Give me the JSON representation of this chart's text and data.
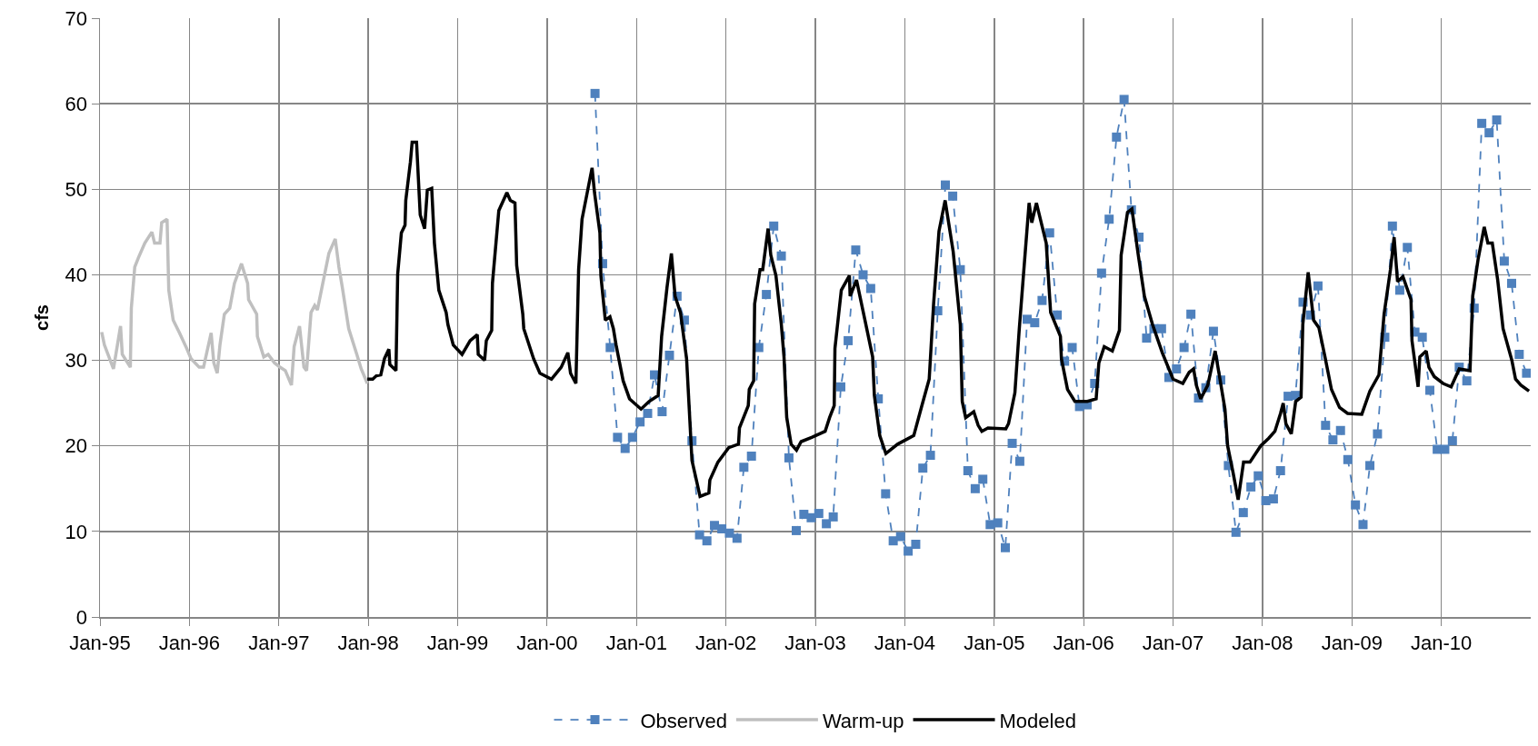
{
  "chart_data": {
    "type": "line",
    "ylabel": "cfs",
    "xlim": [
      "1995-01-01",
      "2011-01-01"
    ],
    "ylim": [
      0,
      70
    ],
    "xticks": [
      {
        "value": "1995-01-01",
        "label": "Jan-95"
      },
      {
        "value": "1996-01-01",
        "label": "Jan-96"
      },
      {
        "value": "1997-01-01",
        "label": "Jan-97"
      },
      {
        "value": "1998-01-01",
        "label": "Jan-98"
      },
      {
        "value": "1999-01-01",
        "label": "Jan-99"
      },
      {
        "value": "2000-01-01",
        "label": "Jan-00"
      },
      {
        "value": "2001-01-01",
        "label": "Jan-01"
      },
      {
        "value": "2002-01-01",
        "label": "Jan-02"
      },
      {
        "value": "2003-01-01",
        "label": "Jan-03"
      },
      {
        "value": "2004-01-01",
        "label": "Jan-04"
      },
      {
        "value": "2005-01-01",
        "label": "Jan-05"
      },
      {
        "value": "2006-01-01",
        "label": "Jan-06"
      },
      {
        "value": "2007-01-01",
        "label": "Jan-07"
      },
      {
        "value": "2008-01-01",
        "label": "Jan-08"
      },
      {
        "value": "2009-01-01",
        "label": "Jan-09"
      },
      {
        "value": "2010-01-01",
        "label": "Jan-10"
      }
    ],
    "yticks": [
      0,
      10,
      20,
      30,
      40,
      50,
      60,
      70
    ],
    "grid": true,
    "legend": "bottom",
    "series": [
      {
        "name": "Observed",
        "color": "#4f81bd",
        "marker": "square",
        "line_style": "dashed",
        "x": [
          "2000-07-15",
          "2000-08-15",
          "2000-09-15",
          "2000-10-15",
          "2000-11-15",
          "2000-12-15",
          "2001-01-15",
          "2001-02-15",
          "2001-03-15",
          "2001-04-15",
          "2001-05-15",
          "2001-06-15",
          "2001-07-15",
          "2001-08-15",
          "2001-09-15",
          "2001-10-15",
          "2001-11-15",
          "2001-12-15",
          "2002-01-15",
          "2002-02-15",
          "2002-03-15",
          "2002-04-15",
          "2002-05-15",
          "2002-06-15",
          "2002-07-15",
          "2002-08-15",
          "2002-09-15",
          "2002-10-15",
          "2002-11-15",
          "2002-12-15",
          "2003-01-15",
          "2003-02-15",
          "2003-03-15",
          "2003-04-15",
          "2003-05-15",
          "2003-06-15",
          "2003-07-15",
          "2003-08-15",
          "2003-09-15",
          "2003-10-15",
          "2003-11-15",
          "2003-12-15",
          "2004-01-15",
          "2004-02-15",
          "2004-03-15",
          "2004-04-15",
          "2004-05-15",
          "2004-06-15",
          "2004-07-15",
          "2004-08-15",
          "2004-09-15",
          "2004-10-15",
          "2004-11-15",
          "2004-12-15",
          "2005-01-15",
          "2005-02-15",
          "2005-03-15",
          "2005-04-15",
          "2005-05-15",
          "2005-06-15",
          "2005-07-15",
          "2005-08-15",
          "2005-09-15",
          "2005-10-15",
          "2005-11-15",
          "2005-12-15",
          "2006-01-15",
          "2006-02-15",
          "2006-03-15",
          "2006-04-15",
          "2006-05-15",
          "2006-06-15",
          "2006-07-15",
          "2006-08-15",
          "2006-09-15",
          "2006-10-15",
          "2006-11-15",
          "2006-12-15",
          "2007-01-15",
          "2007-02-15",
          "2007-03-15",
          "2007-04-15",
          "2007-05-15",
          "2007-06-15",
          "2007-07-15",
          "2007-08-15",
          "2007-09-15",
          "2007-10-15",
          "2007-11-15",
          "2007-12-15",
          "2008-01-15",
          "2008-02-15",
          "2008-03-15",
          "2008-04-15",
          "2008-05-15",
          "2008-06-15",
          "2008-07-15",
          "2008-08-15",
          "2008-09-15",
          "2008-10-15",
          "2008-11-15",
          "2008-12-15",
          "2009-01-15",
          "2009-02-15",
          "2009-03-15",
          "2009-04-15",
          "2009-05-15",
          "2009-06-15",
          "2009-07-15",
          "2009-08-15",
          "2009-09-15",
          "2009-10-15",
          "2009-11-15",
          "2009-12-15",
          "2010-01-15",
          "2010-02-15",
          "2010-03-15",
          "2010-04-15",
          "2010-05-15",
          "2010-06-15",
          "2010-07-15",
          "2010-08-15",
          "2010-09-15",
          "2010-10-15",
          "2010-11-15",
          "2010-12-15"
        ],
        "values": [
          61.2,
          41.3,
          31.5,
          21,
          19.7,
          21,
          22.8,
          23.8,
          28.3,
          24,
          30.6,
          37.5,
          34.7,
          20.6,
          9.6,
          8.9,
          10.7,
          10.3,
          9.8,
          9.2,
          17.5,
          18.8,
          31.5,
          37.7,
          45.7,
          42.2,
          18.6,
          10.1,
          12,
          11.6,
          12.1,
          10.9,
          11.7,
          26.9,
          32.3,
          42.9,
          40,
          38.4,
          25.5,
          14.4,
          8.9,
          9.4,
          7.7,
          8.5,
          17.4,
          18.9,
          35.8,
          50.5,
          49.2,
          40.6,
          17.1,
          15,
          16.1,
          10.8,
          11,
          8.1,
          20.3,
          18.2,
          34.8,
          34.4,
          37,
          44.9,
          35.3,
          29.9,
          31.5,
          24.6,
          24.8,
          27.3,
          40.2,
          46.5,
          56.1,
          60.5,
          47.6,
          44.4,
          32.6,
          33.7,
          33.7,
          28,
          29,
          31.5,
          35.4,
          25.6,
          26.8,
          33.4,
          27.7,
          17.7,
          9.9,
          12.2,
          15.2,
          16.5,
          13.6,
          13.8,
          17.1,
          25.8,
          25.9,
          36.8,
          35.3,
          38.7,
          22.4,
          20.7,
          21.8,
          18.4,
          13.1,
          10.8,
          17.7,
          21.4,
          32.7,
          45.7,
          38.2,
          43.2,
          33.3,
          32.7,
          26.5,
          19.6,
          19.6,
          20.6,
          29.2,
          27.6,
          36.1,
          57.7,
          56.6,
          58.1,
          41.6,
          39,
          30.7,
          28.5
        ]
      },
      {
        "name": "Warm-up",
        "color": "#bfbfbf",
        "marker": "none",
        "line_style": "solid",
        "x": [
          "1995-01-08",
          "1995-01-19",
          "1995-02-25",
          "1995-03-26",
          "1995-04-02",
          "1995-05-05",
          "1995-05-09",
          "1995-05-23",
          "1995-06-07",
          "1995-07-03",
          "1995-08-01",
          "1995-08-12",
          "1995-09-03",
          "1995-09-10",
          "1995-10-02",
          "1995-10-09",
          "1995-10-27",
          "1995-11-22",
          "1995-12-21",
          "1996-01-08",
          "1996-02-10",
          "1996-02-28",
          "1996-03-30",
          "1996-04-10",
          "1996-04-24",
          "1996-05-05",
          "1996-05-23",
          "1996-06-14",
          "1996-07-03",
          "1996-08-01",
          "1996-08-26",
          "1996-08-30",
          "1996-10-02",
          "1996-10-05",
          "1996-10-31",
          "1996-11-18",
          "1996-12-14",
          "1997-01-05",
          "1997-01-27",
          "1997-02-21",
          "1997-03-04",
          "1997-03-26",
          "1997-04-13",
          "1997-04-24",
          "1997-05-12",
          "1997-05-27",
          "1997-06-07",
          "1997-06-29",
          "1997-07-24",
          "1997-08-19",
          "1997-09-03",
          "1997-09-17",
          "1997-10-13",
          "1997-11-15",
          "1997-12-03",
          "1997-12-28"
        ],
        "values": [
          33.3,
          31.8,
          29,
          34,
          30.7,
          29.2,
          36.1,
          40.9,
          42,
          43.7,
          45,
          43.7,
          43.7,
          46.1,
          46.5,
          38.2,
          34.7,
          33.2,
          31.4,
          30.2,
          29.2,
          29.2,
          33.2,
          29.7,
          28.5,
          31.8,
          35.4,
          36.1,
          39,
          41.3,
          39,
          37.1,
          35.4,
          32.8,
          30.4,
          30.7,
          29.7,
          29.2,
          28.8,
          27.1,
          31.6,
          34,
          29.2,
          28.8,
          35.6,
          36.4,
          35.9,
          39,
          42.5,
          44.2,
          40.9,
          38.5,
          33.7,
          30.7,
          29,
          27.3
        ]
      },
      {
        "name": "Modeled",
        "color": "#000000",
        "marker": "none",
        "line_style": "solid",
        "x": [
          "1997-12-28",
          "1998-01-19",
          "1998-02-03",
          "1998-02-21",
          "1998-03-08",
          "1998-03-26",
          "1998-03-30",
          "1998-04-24",
          "1998-05-01",
          "1998-05-16",
          "1998-05-31",
          "1998-06-03",
          "1998-06-22",
          "1998-06-29",
          "1998-07-17",
          "1998-08-01",
          "1998-08-19",
          "1998-08-30",
          "1998-09-17",
          "1998-09-28",
          "1998-10-16",
          "1998-11-15",
          "1998-11-22",
          "1998-12-14",
          "1999-01-19",
          "1999-02-21",
          "1999-03-22",
          "1999-03-26",
          "1999-04-21",
          "1999-04-28",
          "1999-05-20",
          "1999-05-23",
          "1999-06-18",
          "1999-07-21",
          "1999-08-04",
          "1999-08-23",
          "1999-08-30",
          "1999-09-24",
          "1999-09-28",
          "1999-11-07",
          "1999-12-03",
          "2000-01-19",
          "2000-02-28",
          "2000-03-26",
          "2000-04-06",
          "2000-04-28",
          "2000-05-09",
          "2000-05-23",
          "2000-07-03",
          "2000-07-13",
          "2000-08-04",
          "2000-08-08",
          "2000-08-26",
          "2000-09-14",
          "2000-09-28",
          "2000-10-09",
          "2000-11-07",
          "2000-12-03",
          "2001-01-19",
          "2001-02-21",
          "2001-03-30",
          "2001-04-13",
          "2001-05-05",
          "2001-05-23",
          "2001-06-07",
          "2001-06-29",
          "2001-07-24",
          "2001-08-15",
          "2001-09-17",
          "2001-10-23",
          "2001-10-27",
          "2001-11-29",
          "2002-01-12",
          "2002-02-21",
          "2002-02-25",
          "2002-04-02",
          "2002-04-06",
          "2002-04-24",
          "2002-04-28",
          "2002-05-20",
          "2002-05-31",
          "2002-06-22",
          "2002-07-03",
          "2002-07-24",
          "2002-08-15",
          "2002-08-26",
          "2002-09-06",
          "2002-09-24",
          "2002-10-16",
          "2002-11-04",
          "2002-12-17",
          "2003-02-10",
          "2003-02-28",
          "2003-03-19",
          "2003-03-22",
          "2003-04-17",
          "2003-05-20",
          "2003-05-23",
          "2003-06-18",
          "2003-07-24",
          "2003-08-23",
          "2003-08-30",
          "2003-09-21",
          "2003-10-16",
          "2003-12-03",
          "2004-02-07",
          "2004-03-11",
          "2004-04-10",
          "2004-04-28",
          "2004-05-20",
          "2004-06-14",
          "2004-07-17",
          "2004-08-15",
          "2004-08-23",
          "2004-09-06",
          "2004-10-09",
          "2004-10-27",
          "2004-11-11",
          "2004-12-06",
          "2005-02-17",
          "2005-02-28",
          "2005-03-26",
          "2005-04-13",
          "2005-05-05",
          "2005-05-23",
          "2005-06-03",
          "2005-06-22",
          "2005-08-01",
          "2005-08-19",
          "2005-09-28",
          "2005-10-02",
          "2005-10-27",
          "2005-11-26",
          "2006-01-16",
          "2006-02-21",
          "2006-03-04",
          "2006-03-26",
          "2006-04-28",
          "2006-05-27",
          "2006-06-03",
          "2006-06-29",
          "2006-07-17",
          "2006-08-12",
          "2006-09-06",
          "2006-10-09",
          "2006-11-18",
          "2007-01-01",
          "2007-02-10",
          "2007-03-08",
          "2007-03-26",
          "2007-04-06",
          "2007-04-24",
          "2007-05-23",
          "2007-06-22",
          "2007-07-10",
          "2007-08-01",
          "2007-08-12",
          "2007-09-03",
          "2007-09-24",
          "2007-10-16",
          "2007-11-11",
          "2007-12-25",
          "2008-01-27",
          "2008-02-21",
          "2008-03-15",
          "2008-03-26",
          "2008-04-06",
          "2008-04-28",
          "2008-05-16",
          "2008-06-07",
          "2008-06-14",
          "2008-07-06",
          "2008-07-28",
          "2008-08-19",
          "2008-09-14",
          "2008-10-09",
          "2008-11-11",
          "2008-12-14",
          "2009-02-10",
          "2009-03-15",
          "2009-04-21",
          "2009-05-12",
          "2009-06-07",
          "2009-06-22",
          "2009-07-06",
          "2009-07-28",
          "2009-08-30",
          "2009-09-03",
          "2009-09-28",
          "2009-10-05",
          "2009-10-31",
          "2009-11-11",
          "2009-12-03",
          "2010-01-08",
          "2010-02-10",
          "2010-03-15",
          "2010-04-28",
          "2010-05-09",
          "2010-05-31",
          "2010-06-25",
          "2010-07-10",
          "2010-07-28",
          "2010-08-19",
          "2010-09-10",
          "2010-10-16",
          "2010-10-31",
          "2010-11-22",
          "2010-12-25"
        ],
        "values": [
          27.8,
          27.8,
          28.2,
          28.3,
          30.2,
          31.3,
          29.5,
          28.8,
          40.1,
          44.9,
          45.8,
          48.7,
          53.2,
          55.5,
          55.5,
          47,
          45.4,
          49.9,
          50.1,
          43.7,
          38.2,
          35.6,
          34.2,
          31.8,
          30.7,
          32.3,
          33,
          30.7,
          30,
          32.3,
          33.5,
          39,
          47.5,
          49.6,
          48.7,
          48.4,
          41.1,
          35.4,
          33.7,
          30.2,
          28.5,
          27.8,
          29.2,
          30.9,
          28.5,
          27.3,
          40.6,
          46.5,
          52.5,
          49.6,
          44.9,
          39.9,
          34.7,
          35.1,
          33.7,
          31.8,
          27.6,
          25.5,
          24.3,
          25.2,
          25.9,
          32.8,
          38.5,
          42.5,
          37.5,
          35.6,
          30.2,
          18.3,
          14.1,
          14.5,
          16,
          18.1,
          19.8,
          20.2,
          22.1,
          24.7,
          26.6,
          27.6,
          36.6,
          40.6,
          40.6,
          45.4,
          42.3,
          39.9,
          34.2,
          30.4,
          23.3,
          20.2,
          19.5,
          20.5,
          21,
          21.7,
          23.3,
          24.7,
          31.4,
          38.2,
          39.9,
          37.5,
          39.4,
          34.5,
          30.4,
          25.9,
          21.2,
          19.1,
          20.2,
          21.2,
          24.7,
          27.8,
          36.6,
          45.1,
          48.7,
          42.7,
          34.2,
          25.2,
          23.3,
          24,
          22.4,
          21.7,
          22.1,
          22,
          22.6,
          26.2,
          33.7,
          41.8,
          48.4,
          46.1,
          48.4,
          43.7,
          35.6,
          32.8,
          30.2,
          26.6,
          25.2,
          25.2,
          25.5,
          29.7,
          31.6,
          31.1,
          33.5,
          42.3,
          47.3,
          47.7,
          42.3,
          37.5,
          34.2,
          30.9,
          27.8,
          27.3,
          28.6,
          29,
          27.1,
          25.5,
          27.1,
          31.1,
          28.1,
          24.3,
          20,
          16.9,
          13.7,
          18.1,
          18.1,
          20,
          20.9,
          21.7,
          23.8,
          25,
          22.6,
          21.4,
          25.2,
          25.7,
          34.2,
          40.3,
          34.7,
          33.8,
          30.2,
          26.6,
          24.5,
          23.8,
          23.7,
          26.4,
          28.3,
          35.4,
          40.6,
          44.4,
          39.2,
          39.8,
          37.1,
          32.3,
          26.9,
          30.4,
          31.1,
          29.2,
          28.1,
          27.3,
          26.9,
          29,
          28.8,
          37.5,
          41.8,
          45.6,
          43.7,
          43.7,
          39.4,
          33.7,
          30,
          27.8,
          27.1,
          26.4
        ]
      }
    ]
  }
}
